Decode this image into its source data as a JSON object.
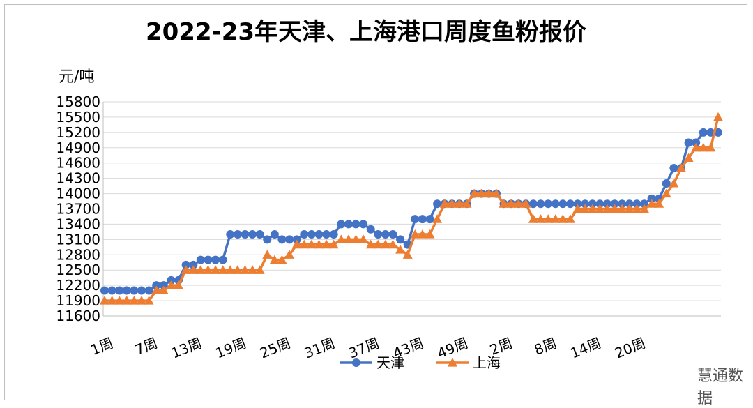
{
  "chart_data": {
    "type": "line",
    "title": "2022-23年天津、上海港口周度鱼粉报价",
    "ylabel": "元/吨",
    "xlabel": "",
    "ylim": [
      11600,
      15800
    ],
    "yticks": [
      11600,
      11900,
      12200,
      12500,
      12800,
      13100,
      13400,
      13700,
      14000,
      14300,
      14600,
      14900,
      15200,
      15500,
      15800
    ],
    "xtick_labels": [
      "1周",
      "7周",
      "13周",
      "19周",
      "25周",
      "31周",
      "37周",
      "43周",
      "49周",
      "2周",
      "8周",
      "14周",
      "20周"
    ],
    "xtick_every": 6,
    "grid": true,
    "legend": "bottom",
    "series": [
      {
        "name": "天津",
        "color": "#4472c4",
        "marker": "circle",
        "values": [
          12100,
          12100,
          12100,
          12100,
          12100,
          12100,
          12100,
          12200,
          12200,
          12300,
          12300,
          12600,
          12600,
          12700,
          12700,
          12700,
          12700,
          13200,
          13200,
          13200,
          13200,
          13200,
          13100,
          13200,
          13100,
          13100,
          13100,
          13200,
          13200,
          13200,
          13200,
          13200,
          13400,
          13400,
          13400,
          13400,
          13300,
          13200,
          13200,
          13200,
          13100,
          13000,
          13500,
          13500,
          13500,
          13800,
          13800,
          13800,
          13800,
          13800,
          14000,
          14000,
          14000,
          14000,
          13800,
          13800,
          13800,
          13800,
          13800,
          13800,
          13800,
          13800,
          13800,
          13800,
          13800,
          13800,
          13800,
          13800,
          13800,
          13800,
          13800,
          13800,
          13800,
          13800,
          13900,
          13900,
          14200,
          14500,
          14500,
          15000,
          15000,
          15200,
          15200,
          15200
        ]
      },
      {
        "name": "上海",
        "color": "#ed7d31",
        "marker": "triangle",
        "values": [
          11900,
          11900,
          11900,
          11900,
          11900,
          11900,
          11900,
          12100,
          12100,
          12200,
          12200,
          12500,
          12500,
          12500,
          12500,
          12500,
          12500,
          12500,
          12500,
          12500,
          12500,
          12500,
          12800,
          12700,
          12700,
          12800,
          13000,
          13000,
          13000,
          13000,
          13000,
          13000,
          13100,
          13100,
          13100,
          13100,
          13000,
          13000,
          13000,
          13000,
          12900,
          12800,
          13200,
          13200,
          13200,
          13500,
          13800,
          13800,
          13800,
          13800,
          14000,
          14000,
          14000,
          14000,
          13800,
          13800,
          13800,
          13800,
          13500,
          13500,
          13500,
          13500,
          13500,
          13500,
          13700,
          13700,
          13700,
          13700,
          13700,
          13700,
          13700,
          13700,
          13700,
          13700,
          13800,
          13800,
          14000,
          14200,
          14500,
          14700,
          14900,
          14900,
          14900,
          15500
        ]
      }
    ]
  },
  "watermark": "慧通数据"
}
